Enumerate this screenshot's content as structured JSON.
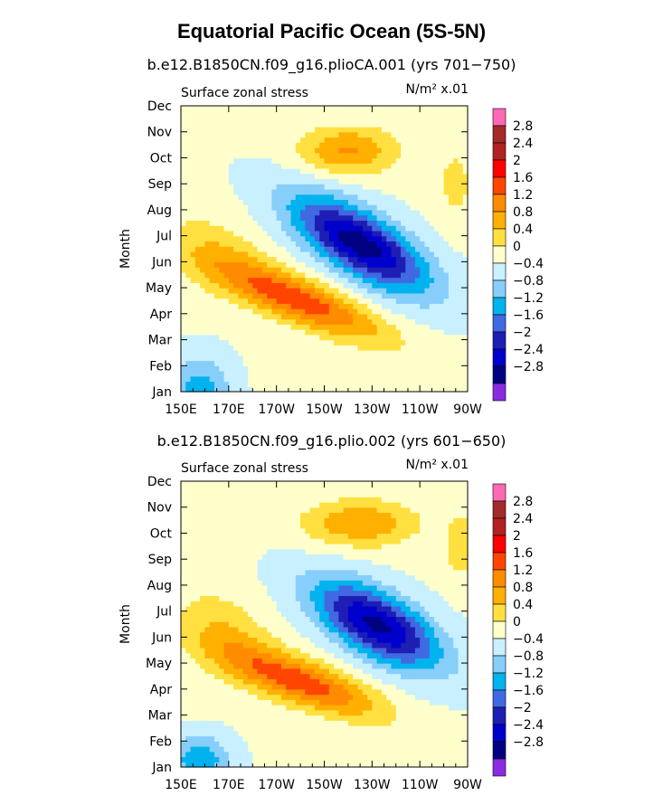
{
  "title": "Equatorial Pacific Ocean (5S-5N)",
  "colors": {
    "levels": [
      "<-2.8",
      "-2.8",
      "-2.4",
      "-2",
      "-1.6",
      "-1.2",
      "-0.8",
      "-0.4",
      "0",
      "0.4",
      "0.8",
      "1.2",
      "1.6",
      "2",
      "2.4",
      "2.8",
      ">2.8"
    ],
    "fill": [
      "#8a2be2",
      "#000080",
      "#0000cd",
      "#1e1eb4",
      "#4169e1",
      "#00b2ee",
      "#87cefa",
      "#c8f0ff",
      "#ffffcc",
      "#ffe040",
      "#ffb000",
      "#ff8c00",
      "#ff4500",
      "#ff0000",
      "#b22222",
      "#a52a2a",
      "#ff69b4"
    ]
  },
  "chart_data": [
    {
      "type": "heatmap",
      "title": "b.e12.B1850CN.f09_g16.plioCA.001 (yrs 701−750)",
      "left_label": "Surface zonal stress",
      "right_label": "N/m² x.01",
      "ylabel": "Month",
      "xlabel": "",
      "x_ticks": [
        "150E",
        "170E",
        "170W",
        "150W",
        "130W",
        "110W",
        "90W"
      ],
      "y_ticks": [
        "Jan",
        "Feb",
        "Mar",
        "Apr",
        "May",
        "Jun",
        "Jul",
        "Aug",
        "Sep",
        "Oct",
        "Nov",
        "Dec"
      ],
      "colorbar_labels": [
        "2.8",
        "2.4",
        "2",
        "1.6",
        "1.2",
        "0.8",
        "0.4",
        "0",
        "−0.4",
        "−0.8",
        "−1.2",
        "−1.6",
        "−2",
        "−2.4",
        "−2.8"
      ],
      "features": [
        {
          "lon": 225,
          "month": 6.7,
          "value": -2.7,
          "spread_lon": 28,
          "spread_month": 1.3,
          "tilt": -0.045
        },
        {
          "lon": 200,
          "month": 4.5,
          "value": 1.8,
          "spread_lon": 34,
          "spread_month": 0.9,
          "tilt": -0.035
        },
        {
          "lon": 220,
          "month": 10.3,
          "value": 1.2,
          "spread_lon": 20,
          "spread_month": 0.9,
          "tilt": 0
        },
        {
          "lon": 158,
          "month": 1.0,
          "value": -1.1,
          "spread_lon": 12,
          "spread_month": 1.3,
          "tilt": 0
        },
        {
          "lon": 165,
          "month": 6.3,
          "value": 0.6,
          "spread_lon": 22,
          "spread_month": 1.5,
          "tilt": -0.03
        },
        {
          "lon": 265,
          "month": 9.0,
          "value": 0.5,
          "spread_lon": 8,
          "spread_month": 1.5,
          "tilt": 0
        }
      ]
    },
    {
      "type": "heatmap",
      "title": "b.e12.B1850CN.f09_g16.plio.002 (yrs 601−650)",
      "left_label": "Surface zonal stress",
      "right_label": "N/m² x.01",
      "ylabel": "Month",
      "xlabel": "",
      "x_ticks": [
        "150E",
        "170E",
        "170W",
        "150W",
        "130W",
        "110W",
        "90W"
      ],
      "y_ticks": [
        "Jan",
        "Feb",
        "Mar",
        "Apr",
        "May",
        "Jun",
        "Jul",
        "Aug",
        "Sep",
        "Oct",
        "Nov",
        "Dec"
      ],
      "colorbar_labels": [
        "2.8",
        "2.4",
        "2",
        "1.6",
        "1.2",
        "0.8",
        "0.4",
        "0",
        "−0.4",
        "−0.8",
        "−1.2",
        "−1.6",
        "−2",
        "−2.4",
        "−2.8"
      ],
      "features": [
        {
          "lon": 232,
          "month": 6.5,
          "value": -2.6,
          "spread_lon": 26,
          "spread_month": 1.3,
          "tilt": -0.04
        },
        {
          "lon": 200,
          "month": 4.3,
          "value": 1.8,
          "spread_lon": 32,
          "spread_month": 0.9,
          "tilt": -0.03
        },
        {
          "lon": 225,
          "month": 10.4,
          "value": 1.1,
          "spread_lon": 24,
          "spread_month": 0.9,
          "tilt": 0
        },
        {
          "lon": 158,
          "month": 1.3,
          "value": -1.2,
          "spread_lon": 12,
          "spread_month": 0.9,
          "tilt": 0
        },
        {
          "lon": 168,
          "month": 6.2,
          "value": 0.7,
          "spread_lon": 20,
          "spread_month": 1.5,
          "tilt": -0.03
        },
        {
          "lon": 267,
          "month": 9.5,
          "value": 0.7,
          "spread_lon": 6,
          "spread_month": 1.2,
          "tilt": 0
        }
      ]
    }
  ]
}
